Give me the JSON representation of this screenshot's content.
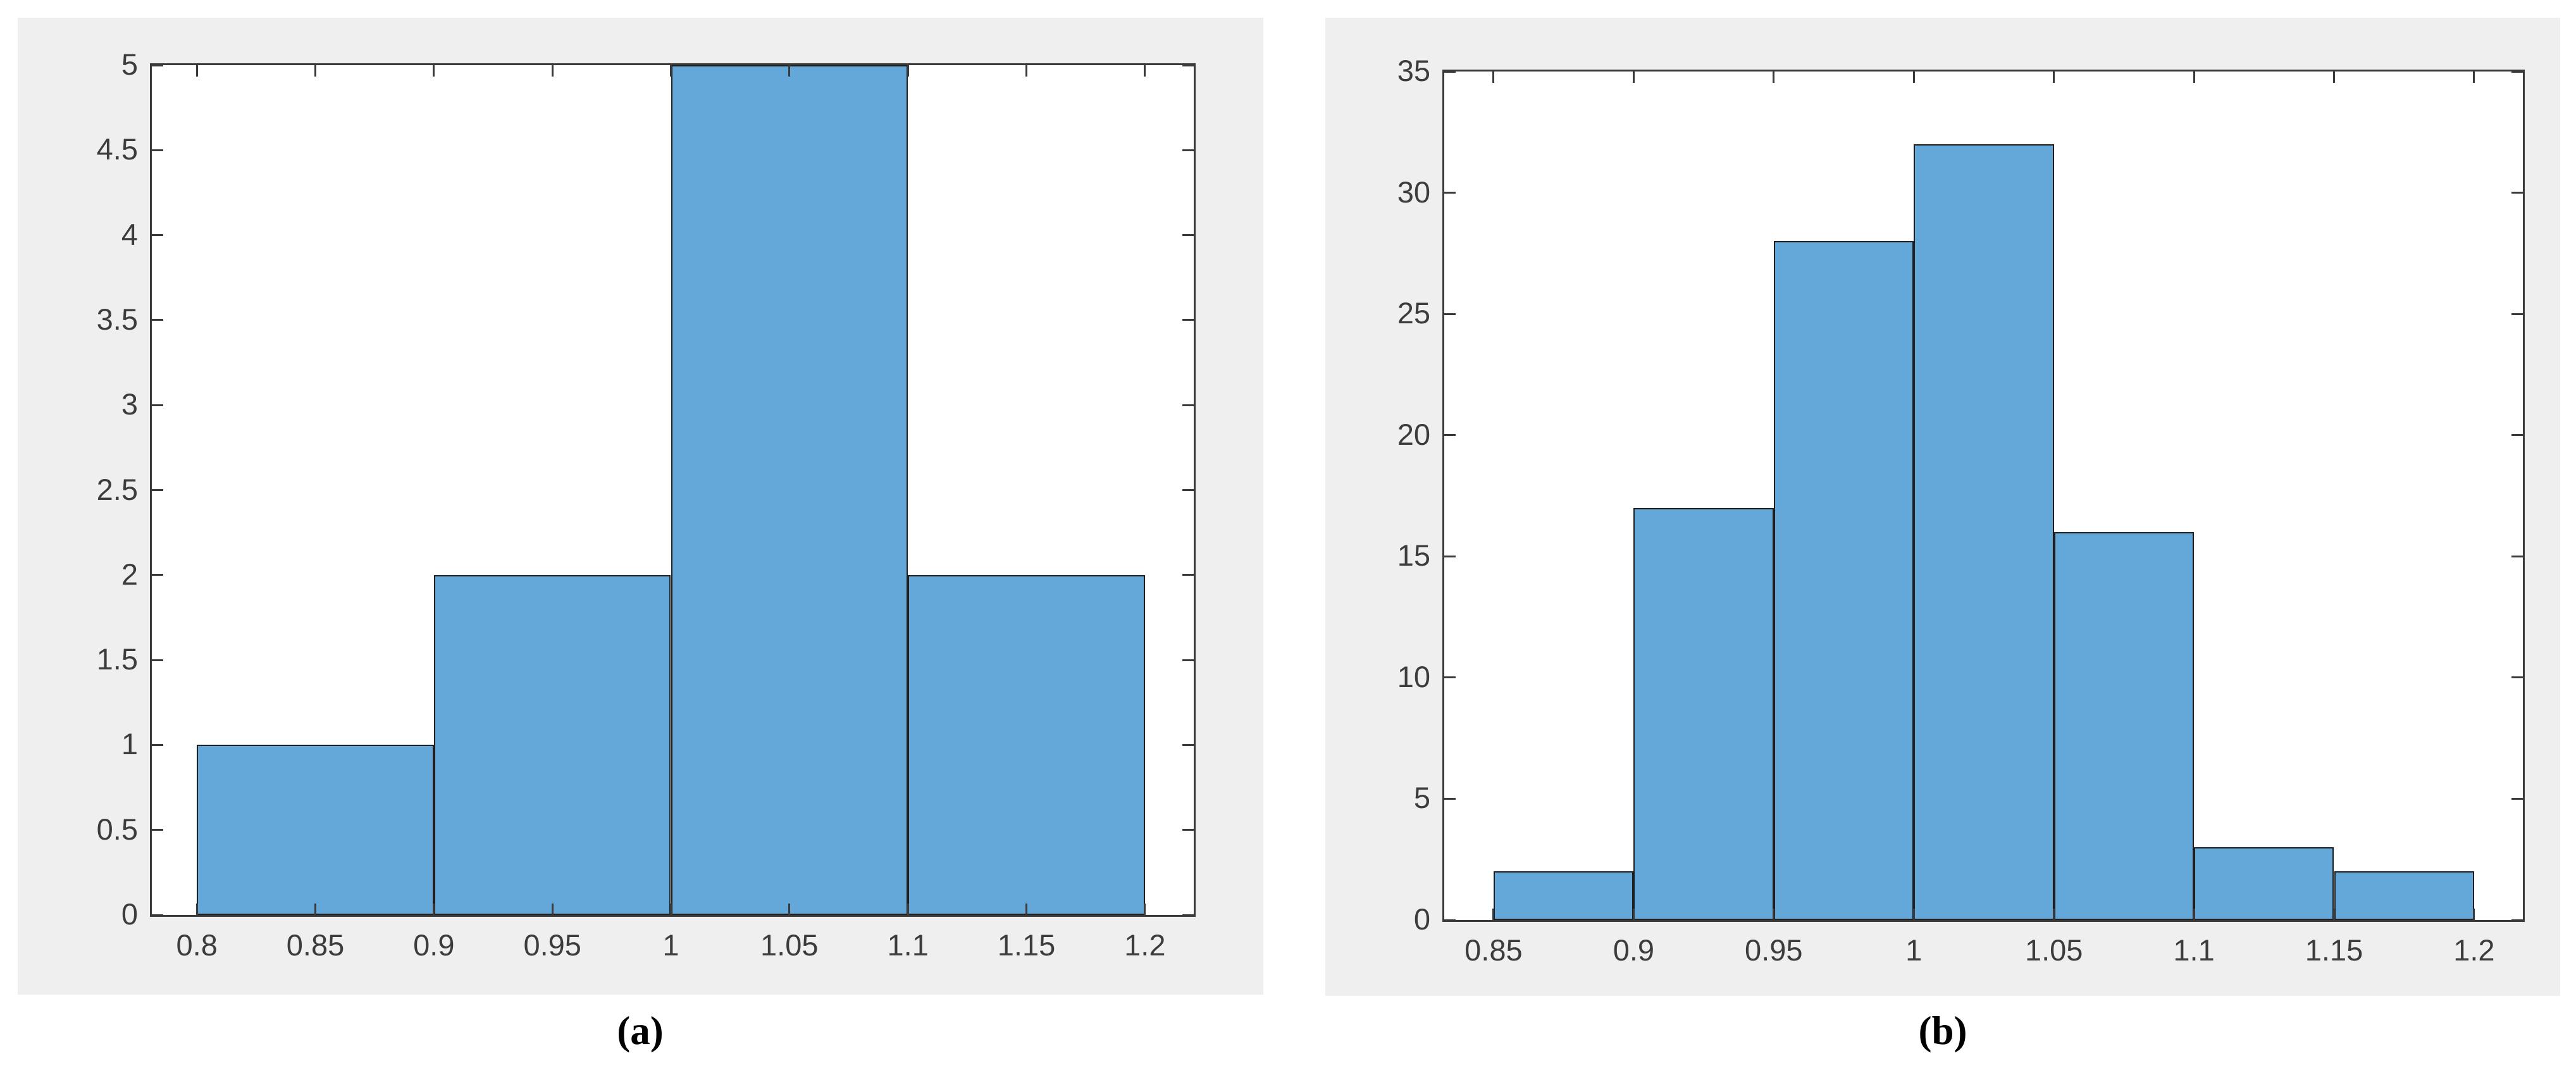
{
  "figure": {
    "description": "Two side-by-side MATLAB-style histograms on light gray panels",
    "colors": {
      "bar_fill": "#63a8d8",
      "bar_edge": "#1f1f1f",
      "axis_line": "#3a3a3a",
      "tick_label": "#3c3c3c",
      "panel_background": "#efefef",
      "plot_background": "#ffffff",
      "page_background": "#ffffff",
      "caption_color": "#000000"
    }
  },
  "chart_data": [
    {
      "type": "bar",
      "subtype": "histogram",
      "panel_label": "(a)",
      "title": "",
      "xlabel": "",
      "ylabel": "",
      "bin_edges": [
        0.8,
        0.9,
        1.0,
        1.1,
        1.2
      ],
      "counts": [
        1,
        2,
        5,
        2
      ],
      "xlim": [
        0.781,
        1.2206
      ],
      "ylim": [
        0,
        5
      ],
      "grid": false,
      "legend": null,
      "x_ticks": [
        {
          "v": 0.8,
          "label": "0.8"
        },
        {
          "v": 0.85,
          "label": "0.85"
        },
        {
          "v": 0.9,
          "label": "0.9"
        },
        {
          "v": 0.95,
          "label": "0.95"
        },
        {
          "v": 1.0,
          "label": "1"
        },
        {
          "v": 1.05,
          "label": "1.05"
        },
        {
          "v": 1.1,
          "label": "1.1"
        },
        {
          "v": 1.15,
          "label": "1.15"
        },
        {
          "v": 1.2,
          "label": "1.2"
        }
      ],
      "y_ticks": [
        {
          "v": 0,
          "label": "0"
        },
        {
          "v": 0.5,
          "label": "0.5"
        },
        {
          "v": 1,
          "label": "1"
        },
        {
          "v": 1.5,
          "label": "1.5"
        },
        {
          "v": 2,
          "label": "2"
        },
        {
          "v": 2.5,
          "label": "2.5"
        },
        {
          "v": 3,
          "label": "3"
        },
        {
          "v": 3.5,
          "label": "3.5"
        },
        {
          "v": 4,
          "label": "4"
        },
        {
          "v": 4.5,
          "label": "4.5"
        },
        {
          "v": 5,
          "label": "5"
        }
      ]
    },
    {
      "type": "bar",
      "subtype": "histogram",
      "panel_label": "(b)",
      "title": "",
      "xlabel": "",
      "ylabel": "",
      "bin_edges": [
        0.85,
        0.9,
        0.95,
        1.0,
        1.05,
        1.1,
        1.15,
        1.2
      ],
      "counts": [
        2,
        17,
        28,
        32,
        16,
        3,
        2
      ],
      "xlim": [
        0.8324,
        1.2174
      ],
      "ylim": [
        0,
        35
      ],
      "grid": false,
      "legend": null,
      "x_ticks": [
        {
          "v": 0.85,
          "label": "0.85"
        },
        {
          "v": 0.9,
          "label": "0.9"
        },
        {
          "v": 0.95,
          "label": "0.95"
        },
        {
          "v": 1.0,
          "label": "1"
        },
        {
          "v": 1.05,
          "label": "1.05"
        },
        {
          "v": 1.1,
          "label": "1.1"
        },
        {
          "v": 1.15,
          "label": "1.15"
        },
        {
          "v": 1.2,
          "label": "1.2"
        }
      ],
      "y_ticks": [
        {
          "v": 0,
          "label": "0"
        },
        {
          "v": 5,
          "label": "5"
        },
        {
          "v": 10,
          "label": "10"
        },
        {
          "v": 15,
          "label": "15"
        },
        {
          "v": 20,
          "label": "20"
        },
        {
          "v": 25,
          "label": "25"
        },
        {
          "v": 30,
          "label": "30"
        },
        {
          "v": 35,
          "label": "35"
        }
      ]
    }
  ]
}
